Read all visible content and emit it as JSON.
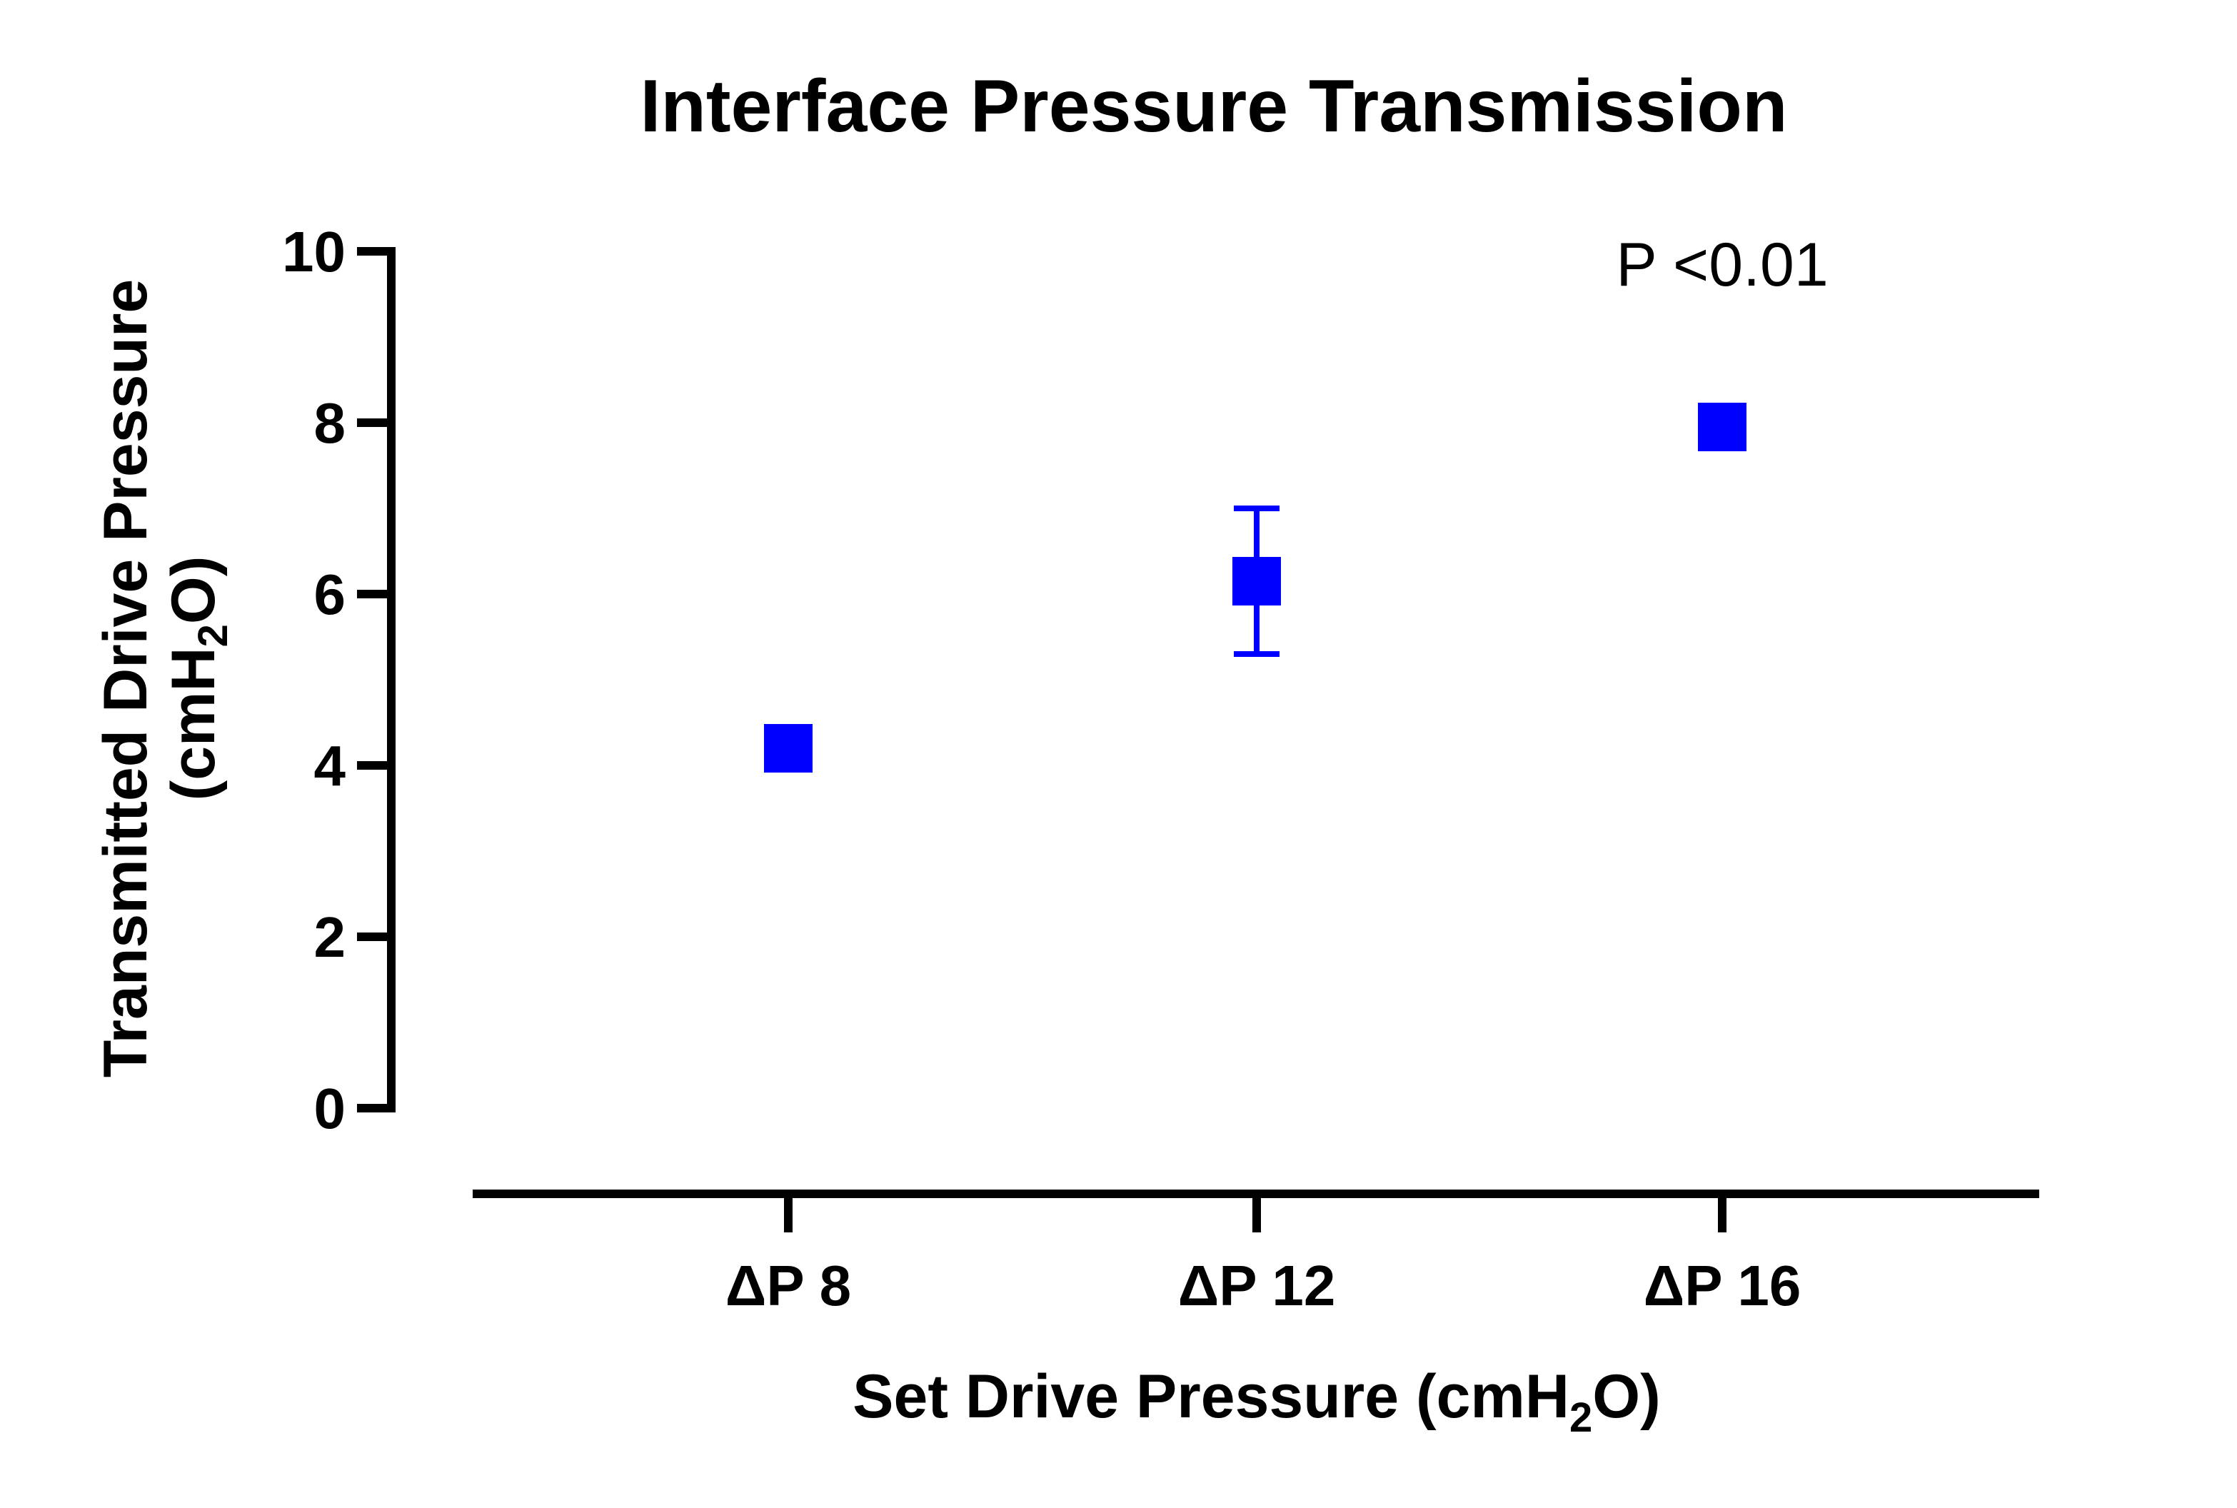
{
  "chart_data": {
    "type": "scatter",
    "title": "Interface Pressure Transmission",
    "xlabel": {
      "main": "Set Drive Pressure (cmH",
      "sub": "2",
      "tail": "O)"
    },
    "ylabel": {
      "line1": "Transmitted Drive Pressure",
      "line2_main": "(cmH",
      "line2_sub": "2",
      "line2_tail": "O)"
    },
    "categories": [
      "ΔP 8",
      "ΔP 12",
      "ΔP 16"
    ],
    "series": [
      {
        "values": [
          4.2,
          6.15,
          7.95
        ],
        "error_low": [
          null,
          5.3,
          null
        ],
        "error_high": [
          null,
          7.0,
          null
        ],
        "color": "#0000ff",
        "marker": "square"
      }
    ],
    "ylim": [
      0,
      10
    ],
    "yticks": [
      "0",
      "2",
      "4",
      "6",
      "8",
      "10"
    ],
    "annotation": "P <0.01",
    "grid": false
  }
}
